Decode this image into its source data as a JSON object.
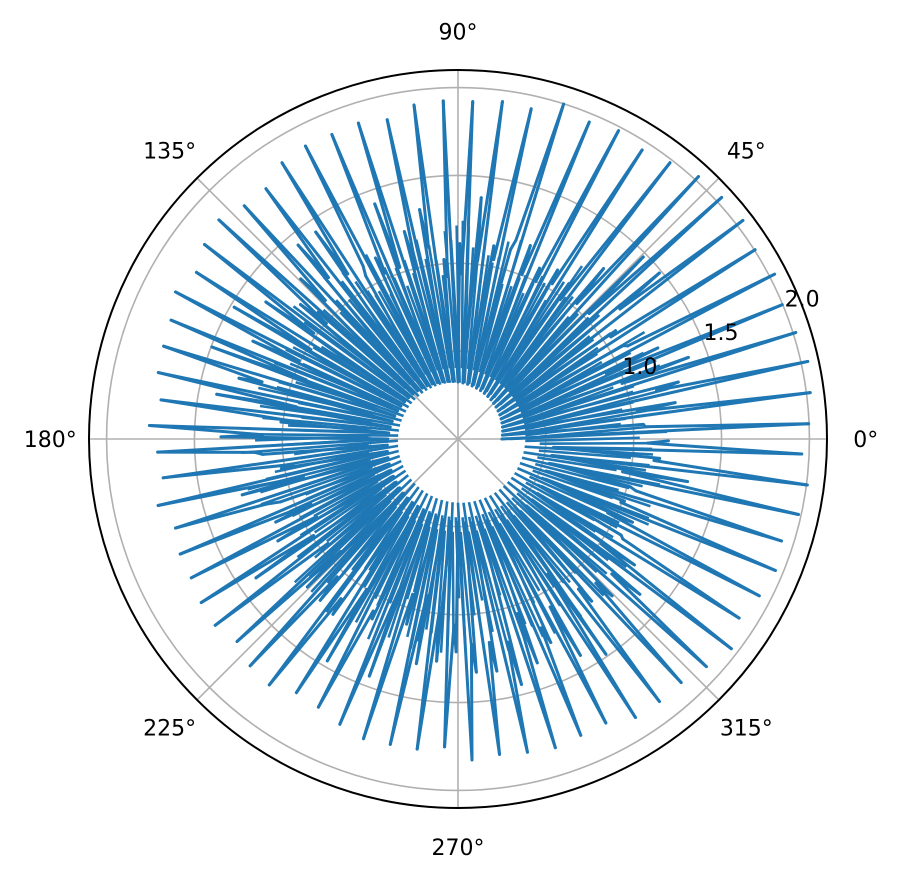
{
  "chart_data": {
    "type": "line",
    "projection": "polar",
    "title": "",
    "theta_ticks": [
      {
        "deg": 0,
        "label": "0°"
      },
      {
        "deg": 45,
        "label": "45°"
      },
      {
        "deg": 90,
        "label": "90°"
      },
      {
        "deg": 135,
        "label": "135°"
      },
      {
        "deg": 180,
        "label": "180°"
      },
      {
        "deg": 225,
        "label": "225°"
      },
      {
        "deg": 270,
        "label": "270°"
      },
      {
        "deg": 315,
        "label": "315°"
      }
    ],
    "r_ticks": [
      {
        "value": 0.5,
        "label": ""
      },
      {
        "value": 1.0,
        "label": "1.0"
      },
      {
        "value": 1.5,
        "label": "1.5"
      },
      {
        "value": 2.0,
        "label": "2.0"
      }
    ],
    "rlim": [
      0,
      2.1
    ],
    "grid": true,
    "series": [
      {
        "color": "#1f77b4",
        "theta_deg_range": [
          0,
          360
        ],
        "spike_count": 72,
        "base_radius_range": [
          0.25,
          0.55
        ],
        "peak_radius_range": [
          1.75,
          2.05
        ],
        "description_points": "alternating spikes between inner spiral base and outer peaks"
      }
    ]
  }
}
